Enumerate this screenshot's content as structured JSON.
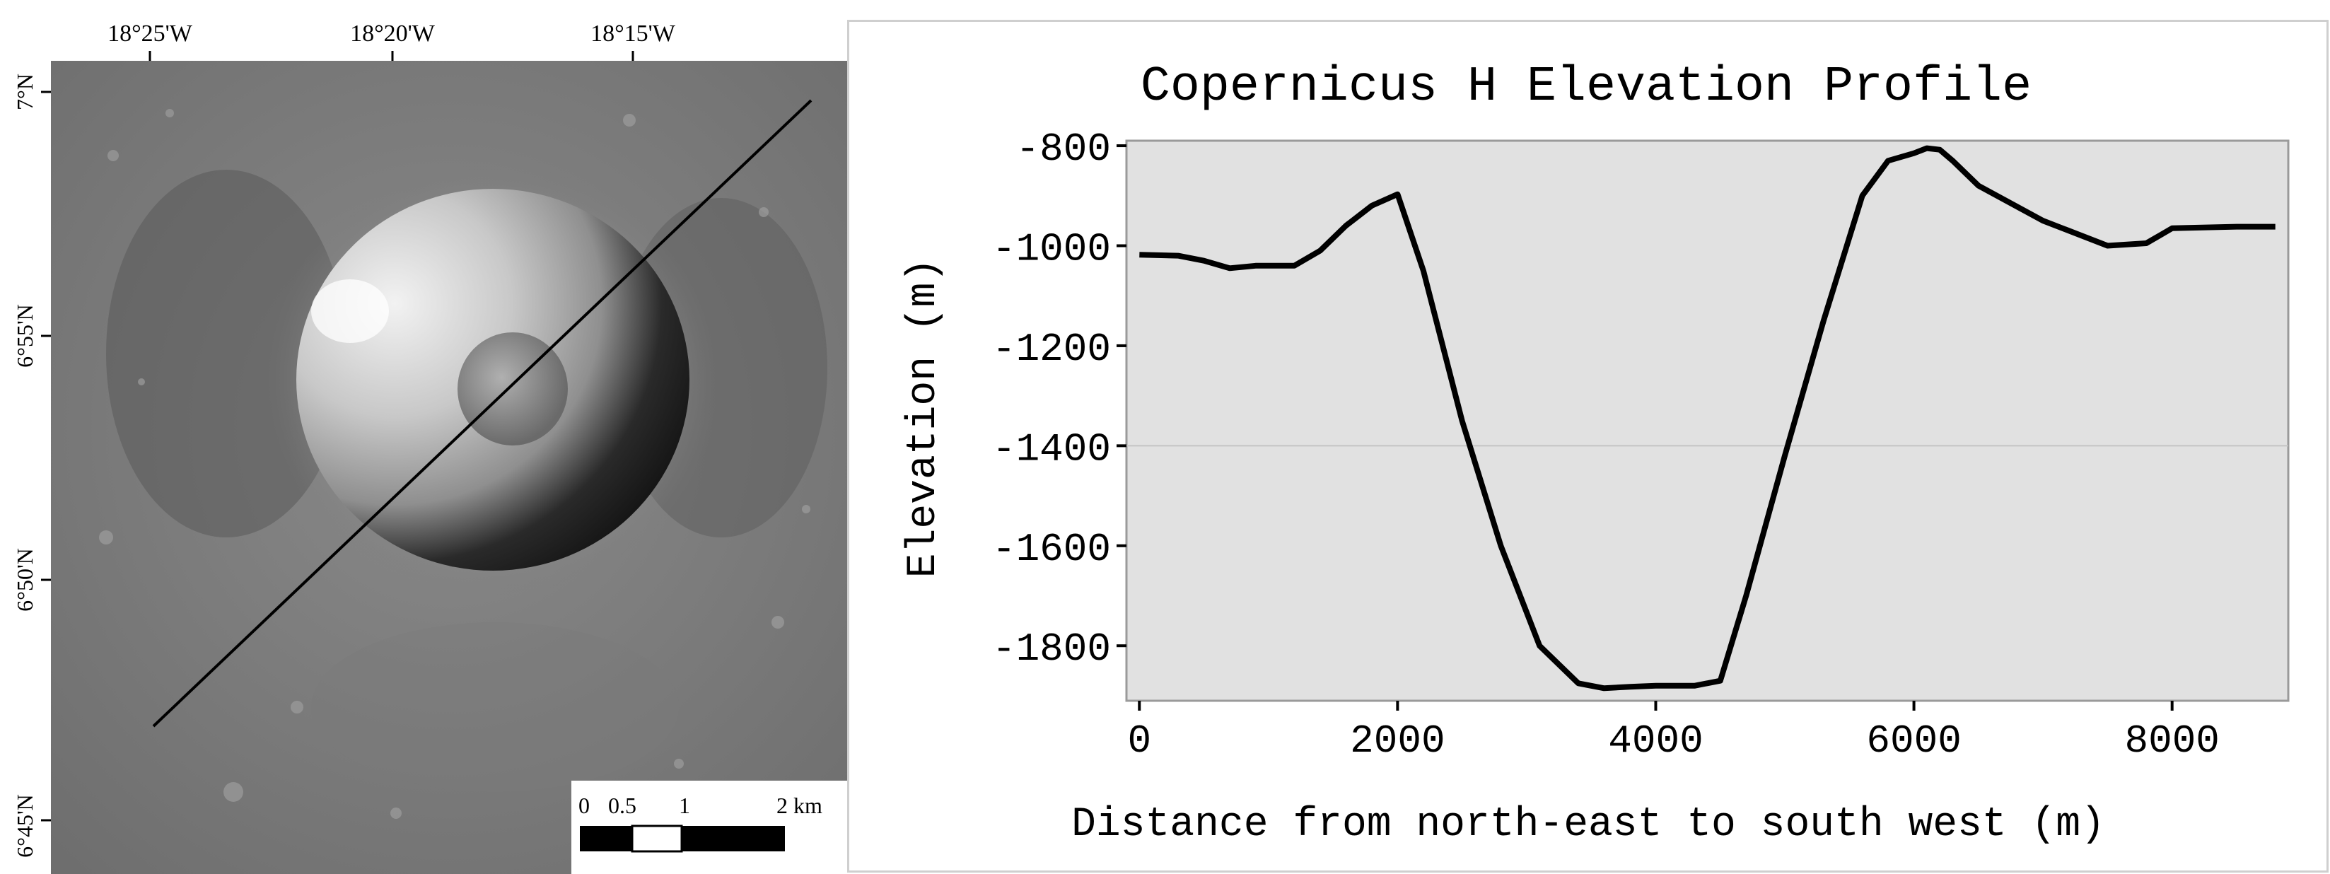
{
  "map": {
    "lon_ticks": [
      "18°25'W",
      "18°20'W",
      "18°15'W"
    ],
    "lat_ticks": [
      "7°N",
      "6°55'N",
      "6°50'N",
      "6°45'N"
    ],
    "scalebar": {
      "labels": [
        "0",
        "0.5",
        "1",
        "2 km"
      ]
    }
  },
  "chart_data": {
    "type": "line",
    "title": "Copernicus H Elevation Profile",
    "xlabel": "Distance from north-east to south west (m)",
    "ylabel": "Elevation (m)",
    "xlim": [
      -100,
      8900
    ],
    "ylim": [
      -1910,
      -790
    ],
    "x_ticks": [
      0,
      2000,
      4000,
      6000,
      8000
    ],
    "y_ticks": [
      -800,
      -1000,
      -1200,
      -1400,
      -1600,
      -1800
    ],
    "x_tick_labels": [
      "0",
      "2000",
      "4000",
      "6000",
      "8000"
    ],
    "y_tick_labels": [
      "-800",
      "-1000",
      "-1200",
      "-1400",
      "-1600",
      "-1800"
    ],
    "grid": "horizontal",
    "series": [
      {
        "name": "Elevation",
        "x": [
          0,
          300,
          500,
          700,
          900,
          1200,
          1400,
          1600,
          1800,
          2000,
          2200,
          2500,
          2800,
          3100,
          3400,
          3600,
          3800,
          4000,
          4300,
          4500,
          4700,
          5000,
          5300,
          5600,
          5800,
          6000,
          6100,
          6200,
          6300,
          6500,
          7000,
          7500,
          7800,
          8000,
          8500,
          8800
        ],
        "y": [
          -1018,
          -1020,
          -1030,
          -1045,
          -1040,
          -1040,
          -1010,
          -960,
          -920,
          -897,
          -1050,
          -1350,
          -1600,
          -1800,
          -1875,
          -1885,
          -1882,
          -1880,
          -1880,
          -1870,
          -1700,
          -1420,
          -1150,
          -900,
          -830,
          -815,
          -805,
          -808,
          -830,
          -880,
          -950,
          -1000,
          -995,
          -965,
          -962,
          -962
        ]
      }
    ]
  }
}
